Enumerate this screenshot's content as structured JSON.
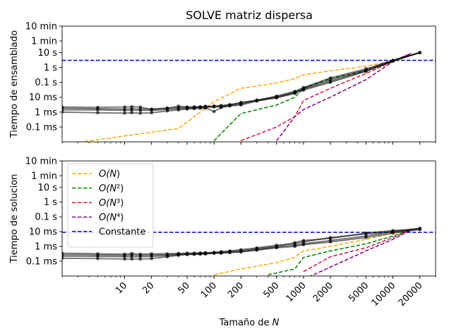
{
  "chart_data": {
    "type": "line",
    "title": "SOLVE matriz dispersa",
    "xlabel": "Tamaño de N",
    "x_scale": "log",
    "xlim": [
      2,
      30000
    ],
    "x_tick_labels": [
      "10",
      "20",
      "50",
      "100",
      "200",
      "500",
      "1000",
      "2000",
      "5000",
      "10000",
      "20000"
    ],
    "x_ticks": [
      10,
      20,
      50,
      100,
      200,
      500,
      1000,
      2000,
      5000,
      10000,
      20000
    ],
    "y_scale": "log",
    "y_tick_labels": [
      "0.1 ms",
      "1 ms",
      "10 ms",
      "0.1 s",
      "1 s",
      "10 s",
      "1 min",
      "10 min"
    ],
    "y_ticks_seconds": [
      0.0001,
      0.001,
      0.01,
      0.1,
      1,
      10,
      60,
      600
    ],
    "ylim_seconds": [
      1e-05,
      600
    ],
    "legend": {
      "position": "upper-left (bottom panel)",
      "entries": [
        {
          "label": "O(N)",
          "color": "#ffa500",
          "dash": true
        },
        {
          "label": "O(N²)",
          "color": "#008000",
          "dash": true
        },
        {
          "label": "O(N³)",
          "color": "#dc143c",
          "dash": true
        },
        {
          "label": "O(N⁴)",
          "color": "#800080",
          "dash": true
        },
        {
          "label": "Constante",
          "color": "#0000cd",
          "dash": true
        }
      ]
    },
    "panels": [
      {
        "ylabel": "Tiempo de ensamblado",
        "constant_seconds": 3,
        "reference_lines": [
          {
            "name": "O(N)",
            "x": [
              2,
              40,
              100,
              200,
              500,
              800,
              1000,
              2000,
              5000,
              10000,
              16000
            ],
            "y": [
              6.5e-06,
              8e-05,
              0.005,
              0.04,
              0.09,
              0.18,
              0.32,
              0.6,
              1.2,
              2.8,
              9
            ]
          },
          {
            "name": "O(N²)",
            "x": [
              100,
              200,
              500,
              800,
              1000,
              2000,
              5000,
              10000,
              16000
            ],
            "y": [
              1.2e-05,
              0.0008,
              0.003,
              0.01,
              0.04,
              0.18,
              0.6,
              2.5,
              9
            ]
          },
          {
            "name": "O(N³)",
            "x": [
              200,
              500,
              800,
              1000,
              2000,
              5000,
              10000,
              16000
            ],
            "y": [
              1.2e-05,
              0.0001,
              0.0005,
              0.006,
              0.04,
              0.4,
              2.5,
              9
            ]
          },
          {
            "name": "O(N⁴)",
            "x": [
              500,
              600,
              800,
              1000,
              2000,
              5000,
              10000,
              16000
            ],
            "y": [
              1.2e-05,
              5e-05,
              0.0005,
              0.0015,
              0.01,
              0.15,
              2.5,
              9
            ]
          }
        ],
        "series": [
          {
            "x": [
              2,
              5,
              10,
              12,
              15,
              20,
              30,
              40,
              50,
              60,
              70,
              80,
              100,
              120,
              150,
              200,
              300,
              500,
              800,
              1000,
              2000,
              5000,
              10000,
              20000
            ],
            "y": [
              0.0022,
              0.0021,
              0.0022,
              0.0023,
              0.0022,
              0.0015,
              0.0018,
              0.0025,
              0.0022,
              0.0022,
              0.0023,
              0.0025,
              0.0024,
              0.0025,
              0.003,
              0.0045,
              0.006,
              0.012,
              0.025,
              0.045,
              0.2,
              0.8,
              3,
              10
            ]
          },
          {
            "x": [
              2,
              5,
              10,
              12,
              15,
              20,
              30,
              40,
              50,
              60,
              70,
              80,
              100,
              120,
              150,
              200,
              300,
              500,
              800,
              1000,
              2000,
              5000,
              10000,
              20000
            ],
            "y": [
              0.0018,
              0.0017,
              0.0016,
              0.0017,
              0.0016,
              0.0016,
              0.0019,
              0.002,
              0.0021,
              0.0022,
              0.0022,
              0.0023,
              0.0026,
              0.0028,
              0.0032,
              0.0042,
              0.0065,
              0.011,
              0.022,
              0.04,
              0.15,
              0.7,
              3,
              10
            ]
          },
          {
            "x": [
              2,
              5,
              10,
              12,
              15,
              20,
              30,
              40,
              50,
              60,
              70,
              80,
              100,
              120,
              150,
              200,
              300,
              500,
              800,
              1000,
              2000,
              5000,
              10000,
              20000
            ],
            "y": [
              0.0014,
              0.0014,
              0.0013,
              0.0013,
              0.0013,
              0.0013,
              0.0015,
              0.0017,
              0.0018,
              0.0019,
              0.002,
              0.002,
              0.0022,
              0.0023,
              0.0027,
              0.0035,
              0.006,
              0.0095,
              0.02,
              0.035,
              0.12,
              0.6,
              2.8,
              10
            ]
          },
          {
            "x": [
              2,
              5,
              10,
              12,
              15,
              20,
              30,
              40,
              50,
              60,
              70,
              80,
              100,
              120,
              150,
              200,
              300,
              500,
              800,
              1000,
              2000,
              5000,
              10000,
              20000
            ],
            "y": [
              0.001,
              0.0009,
              0.00085,
              0.0009,
              0.00085,
              0.0009,
              0.0012,
              0.0014,
              0.0016,
              0.0017,
              0.0018,
              0.0019,
              0.0011,
              0.002,
              0.0026,
              0.003,
              0.0055,
              0.009,
              0.018,
              0.03,
              0.1,
              0.55,
              2.6,
              10
            ]
          }
        ]
      },
      {
        "ylabel": "Tiempo de solucion",
        "constant_seconds": 0.009,
        "reference_lines": [
          {
            "name": "O(N)",
            "x": [
              100,
              200,
              500,
              800,
              1000,
              2000,
              5000,
              10000,
              16000
            ],
            "y": [
              1.2e-05,
              3e-05,
              8e-05,
              0.00018,
              0.0005,
              0.001,
              0.003,
              0.008,
              0.013
            ]
          },
          {
            "name": "O(N²)",
            "x": [
              400,
              800,
              1000,
              2000,
              5000,
              10000,
              16000
            ],
            "y": [
              1.2e-05,
              3e-05,
              0.00018,
              0.0005,
              0.0015,
              0.005,
              0.013
            ]
          },
          {
            "name": "O(N³)",
            "x": [
              1000,
              2000,
              5000,
              10000,
              16000
            ],
            "y": [
              2e-05,
              0.0002,
              0.0008,
              0.004,
              0.013
            ]
          },
          {
            "name": "O(N⁴)",
            "x": [
              1000,
              2000,
              5000,
              10000,
              16000
            ],
            "y": [
              6e-06,
              4e-05,
              0.0005,
              0.003,
              0.013
            ]
          }
        ],
        "series": [
          {
            "x": [
              2,
              5,
              10,
              12,
              15,
              20,
              30,
              40,
              50,
              60,
              70,
              80,
              100,
              120,
              150,
              200,
              300,
              500,
              800,
              1000,
              2000,
              5000,
              10000,
              20000
            ],
            "y": [
              0.00035,
              0.00032,
              0.0003,
              0.00033,
              0.0003,
              0.00032,
              0.00032,
              0.00034,
              0.00035,
              0.00035,
              0.00036,
              0.00038,
              0.0004,
              0.00045,
              0.0005,
              0.0006,
              0.0008,
              0.0012,
              0.0015,
              0.002,
              0.004,
              0.007,
              0.01,
              0.017
            ]
          },
          {
            "x": [
              2,
              5,
              10,
              12,
              15,
              20,
              30,
              40,
              50,
              60,
              70,
              80,
              100,
              120,
              150,
              200,
              300,
              500,
              800,
              1000,
              2000,
              5000,
              10000,
              20000
            ],
            "y": [
              0.00028,
              0.00026,
              0.00025,
              0.00026,
              0.00025,
              0.00026,
              0.00028,
              0.0003,
              0.00032,
              0.00033,
              0.00034,
              0.00035,
              0.00038,
              0.0004,
              0.00045,
              0.0005,
              0.0007,
              0.001,
              0.0018,
              0.0025,
              0.0035,
              0.008,
              0.012,
              0.015
            ]
          },
          {
            "x": [
              2,
              5,
              10,
              12,
              15,
              20,
              30,
              40,
              50,
              60,
              70,
              80,
              100,
              120,
              150,
              200,
              300,
              500,
              800,
              1000,
              2000,
              5000,
              10000,
              20000
            ],
            "y": [
              0.00022,
              0.00021,
              0.0002,
              0.0002,
              0.0002,
              0.00021,
              0.00024,
              0.00028,
              0.0003,
              0.0003,
              0.00031,
              0.00032,
              0.00035,
              0.00036,
              0.0004,
              0.00045,
              0.0006,
              0.0009,
              0.0012,
              0.0015,
              0.0025,
              0.005,
              0.01,
              0.015
            ]
          },
          {
            "x": [
              2,
              5,
              10,
              12,
              15,
              20,
              30,
              40,
              50,
              60,
              70,
              80,
              100,
              120,
              150,
              200,
              300,
              500,
              800,
              1000,
              2000,
              5000,
              10000,
              20000
            ],
            "y": [
              0.00016,
              0.00015,
              0.00014,
              0.00014,
              0.00014,
              0.00015,
              0.0002,
              0.00025,
              0.00028,
              0.00029,
              0.0003,
              0.00031,
              0.00034,
              0.00035,
              0.00038,
              0.00042,
              0.00055,
              0.0008,
              0.001,
              0.0013,
              0.002,
              0.004,
              0.008,
              0.014
            ]
          }
        ]
      }
    ]
  }
}
